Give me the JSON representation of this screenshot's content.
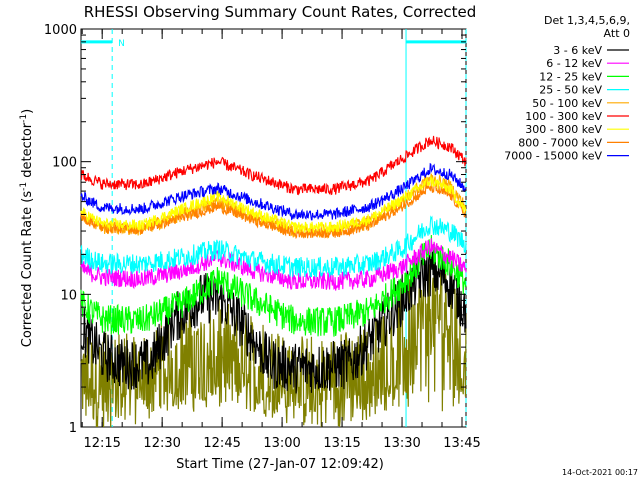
{
  "chart_data": {
    "type": "line",
    "title": "RHESSI Observing Summary Count Rates, Corrected",
    "xlabel": "Start Time (27-Jan-07 12:09:42)",
    "ylabel_parts": [
      "Corrected Count Rate (s",
      "-1",
      " detector",
      "-1",
      ")"
    ],
    "x_start": "12:09:42",
    "x_end": "13:46:00",
    "x_tick_labels": [
      "12:15",
      "12:30",
      "12:45",
      "13:00",
      "13:15",
      "13:30",
      "13:45"
    ],
    "x_tick_times": [
      "12:15",
      "12:30",
      "12:45",
      "13:00",
      "13:15",
      "13:30",
      "13:45"
    ],
    "y_scale": "log",
    "ylim": [
      1,
      1000
    ],
    "y_tick_labels": [
      "1",
      "10",
      "100",
      "1000"
    ],
    "grid": false,
    "legend_header": [
      "Det 1,3,4,5,6,9,",
      "Att 0"
    ],
    "legend_position": "right",
    "series": [
      {
        "name": "3 - 6 keV",
        "color": "#000000",
        "times": [
          "12:09:42",
          "12:12",
          "12:15",
          "12:20",
          "12:27",
          "12:33",
          "12:40",
          "12:45",
          "12:50",
          "12:57",
          "13:03",
          "13:10",
          "13:17",
          "13:22",
          "13:27",
          "13:31",
          "13:34",
          "13:37",
          "13:40",
          "13:43",
          "13:45",
          "13:46"
        ],
        "values": [
          5.6,
          4.5,
          3.5,
          3.0,
          3.0,
          6.5,
          9.5,
          9.0,
          6.0,
          3.0,
          2.8,
          2.8,
          3.0,
          4.5,
          7.0,
          10,
          13,
          15,
          14,
          11,
          8.5,
          7.5
        ]
      },
      {
        "name": "6 - 12 keV",
        "color": "#ff00ff",
        "times": [
          "12:09:42",
          "12:15",
          "12:25",
          "12:35",
          "12:44",
          "12:53",
          "13:03",
          "13:13",
          "13:22",
          "13:30",
          "13:37",
          "13:42",
          "13:46"
        ],
        "values": [
          15.5,
          13.5,
          13,
          15,
          19,
          15,
          12.5,
          12.5,
          13,
          16,
          23,
          19,
          15.5
        ]
      },
      {
        "name": "12 - 25 keV",
        "color": "#00ff00",
        "times": [
          "12:09:42",
          "12:15",
          "12:25",
          "12:35",
          "12:44",
          "12:53",
          "13:03",
          "13:13",
          "13:22",
          "13:30",
          "13:37",
          "13:42",
          "13:46"
        ],
        "values": [
          8.5,
          6.5,
          6.3,
          8.5,
          13,
          9,
          6.3,
          6.2,
          7.5,
          12,
          22,
          17,
          12
        ]
      },
      {
        "name": "25 - 50 keV",
        "color": "#00ffff",
        "times": [
          "12:09:42",
          "12:15",
          "12:25",
          "12:35",
          "12:44",
          "12:53",
          "13:03",
          "13:13",
          "13:22",
          "13:30",
          "13:37",
          "13:42",
          "13:46"
        ],
        "values": [
          20,
          17,
          17,
          19,
          22,
          18,
          16,
          16,
          17,
          22,
          34,
          30,
          24
        ]
      },
      {
        "name": "50 - 100 keV",
        "color": "#ffaa00",
        "times": [
          "12:09:42",
          "12:15",
          "12:25",
          "12:35",
          "12:44",
          "12:53",
          "13:03",
          "13:13",
          "13:22",
          "13:30",
          "13:37",
          "13:42",
          "13:46"
        ],
        "values": [
          40,
          32,
          31,
          40,
          50,
          38,
          30,
          30,
          35,
          50,
          75,
          65,
          45
        ]
      },
      {
        "name": "100 - 300 keV",
        "color": "#ff0000",
        "times": [
          "12:09:42",
          "12:15",
          "12:25",
          "12:35",
          "12:44",
          "12:53",
          "13:03",
          "13:13",
          "13:22",
          "13:30",
          "13:37",
          "13:42",
          "13:46"
        ],
        "values": [
          80,
          68,
          67,
          85,
          100,
          78,
          62,
          62,
          72,
          105,
          145,
          130,
          100
        ]
      },
      {
        "name": "300 - 800 keV",
        "color": "#ffff00",
        "times": [
          "12:09:42",
          "12:15",
          "12:25",
          "12:35",
          "12:44",
          "12:53",
          "13:03",
          "13:13",
          "13:22",
          "13:30",
          "13:37",
          "13:42",
          "13:46"
        ],
        "values": [
          42,
          34,
          33,
          44,
          55,
          41,
          32,
          32,
          37,
          52,
          72,
          62,
          42
        ]
      },
      {
        "name": "800 - 7000 keV",
        "color": "#ff8000",
        "times": [
          "12:09:42",
          "12:15",
          "12:25",
          "12:35",
          "12:44",
          "12:53",
          "13:03",
          "13:13",
          "13:22",
          "13:30",
          "13:37",
          "13:42",
          "13:46"
        ],
        "values": [
          38,
          32,
          31,
          38,
          46,
          36,
          29,
          29,
          33,
          46,
          64,
          56,
          40
        ]
      },
      {
        "name": "7000 - 15000 keV",
        "color": "#0000ff",
        "times": [
          "12:09:42",
          "12:15",
          "12:25",
          "12:35",
          "12:44",
          "12:53",
          "13:03",
          "13:13",
          "13:22",
          "13:30",
          "13:37",
          "13:42",
          "13:46"
        ],
        "values": [
          55,
          45,
          44,
          55,
          63,
          50,
          40,
          40,
          46,
          62,
          88,
          80,
          62
        ]
      },
      {
        "name": "",
        "color": "#808000",
        "times": [
          "12:09:42",
          "12:15",
          "12:25",
          "12:35",
          "12:44",
          "12:53",
          "13:03",
          "13:13",
          "13:22",
          "13:30",
          "13:37",
          "13:42",
          "13:46"
        ],
        "values": [
          2.4,
          2.2,
          2.3,
          3.2,
          4.0,
          3.0,
          2.2,
          2.2,
          2.6,
          5.0,
          8.0,
          7.0,
          3.8
        ]
      }
    ],
    "overlay_color": "#00ffff",
    "overlay_bars": [
      {
        "start": "12:09:42",
        "end": "12:17:30",
        "value": 800
      },
      {
        "start": "13:31:00",
        "end": "13:46:00",
        "value": 800
      }
    ],
    "overlay_dashed_times": [
      "12:17:30",
      "13:46:00"
    ],
    "overlay_solid_times": [
      "13:31:00"
    ],
    "overlay_label": "N",
    "overlay_label_time": "12:18:00",
    "timestamp": "14-Oct-2021 00:17"
  }
}
